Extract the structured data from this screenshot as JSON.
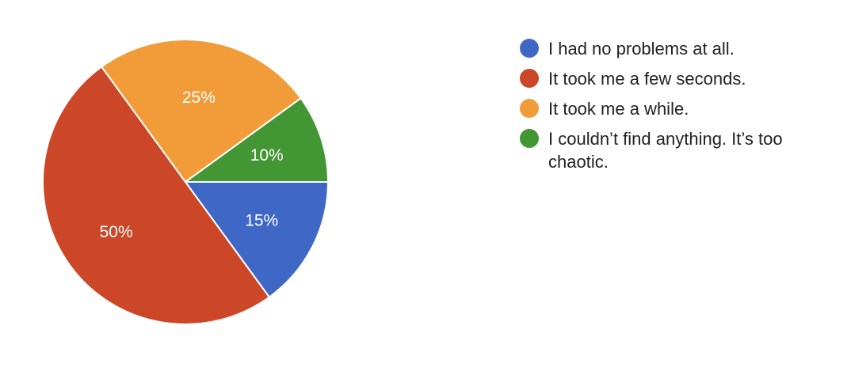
{
  "chart_data": {
    "type": "pie",
    "slices": [
      {
        "label": "I had no problems at all.",
        "value": 15,
        "value_label": "15%",
        "color": "#3f67c6"
      },
      {
        "label": "It took me a few seconds.",
        "value": 50,
        "value_label": "50%",
        "color": "#cc4628"
      },
      {
        "label": "It took me a while.",
        "value": 25,
        "value_label": "25%",
        "color": "#f19c38"
      },
      {
        "label": "I couldn’t find anything. It’s too chaotic.",
        "value": 10,
        "value_label": "10%",
        "color": "#429633"
      }
    ],
    "legend_position": "right"
  }
}
